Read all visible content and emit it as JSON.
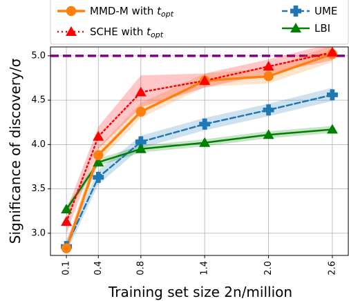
{
  "chart_data": {
    "type": "line",
    "xlabel": "Training set size 2n/million",
    "ylabel": "Significance of discovery/σ",
    "x": [
      0.1,
      0.4,
      0.8,
      1.4,
      2.0,
      2.6
    ],
    "x_tick_labels": [
      "0.1",
      "0.4",
      "0.8",
      "1.4",
      "2.0",
      "2.6"
    ],
    "ylim": [
      2.75,
      5.1
    ],
    "y_ticks": [
      3.0,
      3.5,
      4.0,
      4.5,
      5.0
    ],
    "y_tick_labels": [
      "3.0",
      "3.5",
      "4.0",
      "4.5",
      "5.0"
    ],
    "grid": true,
    "reference_line": {
      "y": 5.0,
      "color": "#800080",
      "style": "dashed"
    },
    "series": [
      {
        "name": "MMD-M with t_opt",
        "name_main": "MMD-M with ",
        "name_sym": "t",
        "name_sub": "opt",
        "color": "#ff7f0e",
        "marker": "circle",
        "line_style": "solid",
        "values": [
          2.83,
          3.88,
          4.37,
          4.72,
          4.77,
          5.02
        ],
        "band_lower": [
          2.77,
          3.8,
          4.3,
          4.65,
          4.69,
          4.93
        ],
        "band_upper": [
          2.9,
          3.97,
          4.47,
          4.8,
          4.86,
          5.12
        ]
      },
      {
        "name": "SCHE with t_opt",
        "name_main": "SCHE with ",
        "name_sym": "t",
        "name_sub": "opt",
        "color": "#ff0000",
        "marker": "triangle",
        "line_style": "dotted",
        "values": [
          3.13,
          4.09,
          4.59,
          4.72,
          4.88,
          5.04
        ],
        "band_lower": [
          3.0,
          3.95,
          4.42,
          4.64,
          4.8,
          4.95
        ],
        "band_upper": [
          3.26,
          4.2,
          4.78,
          4.8,
          4.96,
          5.14
        ]
      },
      {
        "name": "UME",
        "color": "#1f77b4",
        "marker": "plus",
        "line_style": "dashed",
        "values": [
          2.85,
          3.63,
          4.03,
          4.23,
          4.39,
          4.56
        ],
        "band_lower": [
          2.78,
          3.55,
          3.96,
          4.16,
          4.32,
          4.49
        ],
        "band_upper": [
          2.93,
          3.71,
          4.1,
          4.3,
          4.46,
          4.64
        ]
      },
      {
        "name": "LBI",
        "color": "#008000",
        "marker": "triangle",
        "line_style": "solid",
        "values": [
          3.27,
          3.8,
          3.95,
          4.02,
          4.11,
          4.17
        ],
        "band_lower": [
          3.22,
          3.76,
          3.91,
          3.98,
          4.07,
          4.13
        ],
        "band_upper": [
          3.31,
          3.84,
          3.99,
          4.06,
          4.15,
          4.21
        ]
      }
    ],
    "legend_placement": "top"
  }
}
